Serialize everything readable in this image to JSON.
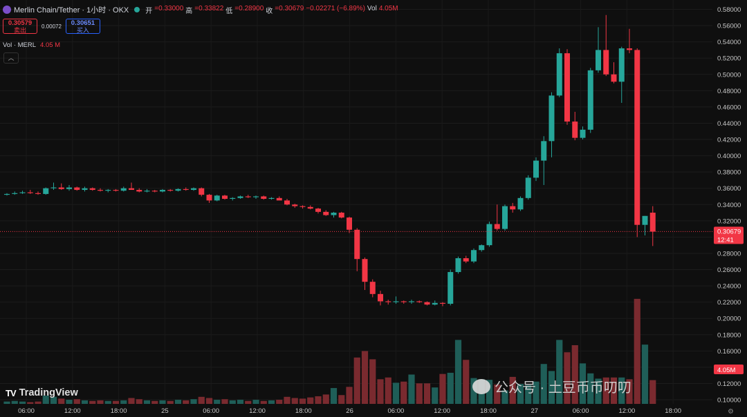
{
  "header": {
    "symbol": "Merlin Chain/Tether · 1小时 · OKX",
    "ohlc": [
      {
        "label": "开",
        "value": "=0.33000"
      },
      {
        "label": "高",
        "value": "=0.33822"
      },
      {
        "label": "低",
        "value": "=0.28900"
      },
      {
        "label": "收",
        "value": "=0.30679"
      }
    ],
    "change": "−0.02271 (−6.89%)",
    "vol_label": "Vol",
    "vol_value": "4.05M"
  },
  "trade": {
    "sell_price": "0.30579",
    "sell_label": "卖出",
    "spread": "0.00072",
    "buy_price": "0.30651",
    "buy_label": "买入"
  },
  "volume_legend": {
    "label": "Vol · MERL",
    "value": "4.05 M"
  },
  "collapse_icon": "chevron-up-icon",
  "price_axis": {
    "ticks": [
      "0.58000",
      "0.56000",
      "0.54000",
      "0.52000",
      "0.50000",
      "0.48000",
      "0.46000",
      "0.44000",
      "0.42000",
      "0.40000",
      "0.38000",
      "0.36000",
      "0.34000",
      "0.32000",
      "0.30000",
      "0.28000",
      "0.26000",
      "0.24000",
      "0.22000",
      "0.20000",
      "0.18000",
      "0.16000",
      "0.14000",
      "0.12000",
      "0.10000"
    ],
    "current_price": "0.30679",
    "countdown": "12:41",
    "volume_badge": "4.05M"
  },
  "time_axis": {
    "labels": [
      "06:00",
      "12:00",
      "18:00",
      "25",
      "06:00",
      "12:00",
      "18:00",
      "26",
      "06:00",
      "12:00",
      "18:00",
      "27",
      "06:00",
      "12:00",
      "18:00"
    ]
  },
  "branding": {
    "logo": "TV",
    "name": "TradingView"
  },
  "watermark": "公众号 · 土豆币币叨叨",
  "colors": {
    "up": "#26a69a",
    "down": "#f23645",
    "up_volume": "#1f5e58",
    "down_volume": "#7a2a2f",
    "background": "#0f0f0f"
  },
  "chart_data": {
    "type": "candlestick",
    "price_range": [
      0.09,
      0.585
    ],
    "current_price": 0.30679,
    "candles": [
      {
        "o": 0.352,
        "h": 0.354,
        "l": 0.351,
        "c": 0.353
      },
      {
        "o": 0.353,
        "h": 0.356,
        "l": 0.352,
        "c": 0.354
      },
      {
        "o": 0.354,
        "h": 0.357,
        "l": 0.353,
        "c": 0.355
      },
      {
        "o": 0.355,
        "h": 0.358,
        "l": 0.353,
        "c": 0.354
      },
      {
        "o": 0.354,
        "h": 0.356,
        "l": 0.352,
        "c": 0.353
      },
      {
        "o": 0.353,
        "h": 0.361,
        "l": 0.352,
        "c": 0.36
      },
      {
        "o": 0.36,
        "h": 0.367,
        "l": 0.358,
        "c": 0.361
      },
      {
        "o": 0.361,
        "h": 0.366,
        "l": 0.358,
        "c": 0.359
      },
      {
        "o": 0.359,
        "h": 0.364,
        "l": 0.357,
        "c": 0.361
      },
      {
        "o": 0.361,
        "h": 0.362,
        "l": 0.357,
        "c": 0.358
      },
      {
        "o": 0.358,
        "h": 0.362,
        "l": 0.356,
        "c": 0.36
      },
      {
        "o": 0.36,
        "h": 0.361,
        "l": 0.357,
        "c": 0.358
      },
      {
        "o": 0.358,
        "h": 0.36,
        "l": 0.356,
        "c": 0.357
      },
      {
        "o": 0.357,
        "h": 0.359,
        "l": 0.355,
        "c": 0.358
      },
      {
        "o": 0.358,
        "h": 0.359,
        "l": 0.356,
        "c": 0.357
      },
      {
        "o": 0.357,
        "h": 0.362,
        "l": 0.356,
        "c": 0.36
      },
      {
        "o": 0.36,
        "h": 0.367,
        "l": 0.358,
        "c": 0.358
      },
      {
        "o": 0.358,
        "h": 0.36,
        "l": 0.355,
        "c": 0.356
      },
      {
        "o": 0.356,
        "h": 0.359,
        "l": 0.355,
        "c": 0.357
      },
      {
        "o": 0.357,
        "h": 0.358,
        "l": 0.355,
        "c": 0.356
      },
      {
        "o": 0.356,
        "h": 0.359,
        "l": 0.355,
        "c": 0.358
      },
      {
        "o": 0.358,
        "h": 0.359,
        "l": 0.356,
        "c": 0.357
      },
      {
        "o": 0.357,
        "h": 0.36,
        "l": 0.356,
        "c": 0.359
      },
      {
        "o": 0.359,
        "h": 0.361,
        "l": 0.357,
        "c": 0.358
      },
      {
        "o": 0.358,
        "h": 0.361,
        "l": 0.357,
        "c": 0.36
      },
      {
        "o": 0.36,
        "h": 0.361,
        "l": 0.35,
        "c": 0.352
      },
      {
        "o": 0.352,
        "h": 0.353,
        "l": 0.342,
        "c": 0.345
      },
      {
        "o": 0.345,
        "h": 0.352,
        "l": 0.344,
        "c": 0.351
      },
      {
        "o": 0.351,
        "h": 0.352,
        "l": 0.346,
        "c": 0.347
      },
      {
        "o": 0.347,
        "h": 0.349,
        "l": 0.345,
        "c": 0.348
      },
      {
        "o": 0.348,
        "h": 0.351,
        "l": 0.347,
        "c": 0.35
      },
      {
        "o": 0.35,
        "h": 0.352,
        "l": 0.348,
        "c": 0.349
      },
      {
        "o": 0.349,
        "h": 0.351,
        "l": 0.347,
        "c": 0.35
      },
      {
        "o": 0.35,
        "h": 0.351,
        "l": 0.346,
        "c": 0.347
      },
      {
        "o": 0.347,
        "h": 0.349,
        "l": 0.346,
        "c": 0.348
      },
      {
        "o": 0.348,
        "h": 0.35,
        "l": 0.346,
        "c": 0.345
      },
      {
        "o": 0.345,
        "h": 0.347,
        "l": 0.339,
        "c": 0.34
      },
      {
        "o": 0.34,
        "h": 0.341,
        "l": 0.336,
        "c": 0.338
      },
      {
        "o": 0.338,
        "h": 0.339,
        "l": 0.335,
        "c": 0.337
      },
      {
        "o": 0.337,
        "h": 0.339,
        "l": 0.334,
        "c": 0.335
      },
      {
        "o": 0.335,
        "h": 0.336,
        "l": 0.329,
        "c": 0.331
      },
      {
        "o": 0.331,
        "h": 0.333,
        "l": 0.326,
        "c": 0.327
      },
      {
        "o": 0.327,
        "h": 0.331,
        "l": 0.324,
        "c": 0.33
      },
      {
        "o": 0.33,
        "h": 0.331,
        "l": 0.323,
        "c": 0.324
      },
      {
        "o": 0.324,
        "h": 0.325,
        "l": 0.305,
        "c": 0.309
      },
      {
        "o": 0.309,
        "h": 0.311,
        "l": 0.258,
        "c": 0.273
      },
      {
        "o": 0.273,
        "h": 0.275,
        "l": 0.235,
        "c": 0.245
      },
      {
        "o": 0.245,
        "h": 0.248,
        "l": 0.226,
        "c": 0.23
      },
      {
        "o": 0.23,
        "h": 0.234,
        "l": 0.216,
        "c": 0.221
      },
      {
        "o": 0.221,
        "h": 0.223,
        "l": 0.217,
        "c": 0.22
      },
      {
        "o": 0.22,
        "h": 0.227,
        "l": 0.218,
        "c": 0.221
      },
      {
        "o": 0.221,
        "h": 0.222,
        "l": 0.218,
        "c": 0.22
      },
      {
        "o": 0.22,
        "h": 0.223,
        "l": 0.218,
        "c": 0.221
      },
      {
        "o": 0.221,
        "h": 0.222,
        "l": 0.219,
        "c": 0.22
      },
      {
        "o": 0.22,
        "h": 0.221,
        "l": 0.216,
        "c": 0.217
      },
      {
        "o": 0.217,
        "h": 0.222,
        "l": 0.216,
        "c": 0.219
      },
      {
        "o": 0.219,
        "h": 0.22,
        "l": 0.215,
        "c": 0.218
      },
      {
        "o": 0.218,
        "h": 0.26,
        "l": 0.216,
        "c": 0.257
      },
      {
        "o": 0.257,
        "h": 0.276,
        "l": 0.255,
        "c": 0.274
      },
      {
        "o": 0.274,
        "h": 0.277,
        "l": 0.268,
        "c": 0.27
      },
      {
        "o": 0.27,
        "h": 0.286,
        "l": 0.268,
        "c": 0.284
      },
      {
        "o": 0.284,
        "h": 0.291,
        "l": 0.282,
        "c": 0.29
      },
      {
        "o": 0.29,
        "h": 0.319,
        "l": 0.288,
        "c": 0.316
      },
      {
        "o": 0.316,
        "h": 0.34,
        "l": 0.308,
        "c": 0.31
      },
      {
        "o": 0.31,
        "h": 0.34,
        "l": 0.308,
        "c": 0.338
      },
      {
        "o": 0.338,
        "h": 0.342,
        "l": 0.33,
        "c": 0.334
      },
      {
        "o": 0.334,
        "h": 0.35,
        "l": 0.332,
        "c": 0.348
      },
      {
        "o": 0.348,
        "h": 0.376,
        "l": 0.346,
        "c": 0.373
      },
      {
        "o": 0.373,
        "h": 0.398,
        "l": 0.369,
        "c": 0.394
      },
      {
        "o": 0.394,
        "h": 0.424,
        "l": 0.364,
        "c": 0.418
      },
      {
        "o": 0.418,
        "h": 0.478,
        "l": 0.398,
        "c": 0.474
      },
      {
        "o": 0.474,
        "h": 0.532,
        "l": 0.472,
        "c": 0.526
      },
      {
        "o": 0.526,
        "h": 0.531,
        "l": 0.438,
        "c": 0.442
      },
      {
        "o": 0.442,
        "h": 0.454,
        "l": 0.419,
        "c": 0.422
      },
      {
        "o": 0.422,
        "h": 0.436,
        "l": 0.42,
        "c": 0.432
      },
      {
        "o": 0.432,
        "h": 0.508,
        "l": 0.428,
        "c": 0.505
      },
      {
        "o": 0.505,
        "h": 0.558,
        "l": 0.502,
        "c": 0.53
      },
      {
        "o": 0.53,
        "h": 0.573,
        "l": 0.498,
        "c": 0.5
      },
      {
        "o": 0.5,
        "h": 0.515,
        "l": 0.489,
        "c": 0.491
      },
      {
        "o": 0.491,
        "h": 0.534,
        "l": 0.465,
        "c": 0.532
      },
      {
        "o": 0.532,
        "h": 0.556,
        "l": 0.526,
        "c": 0.53
      },
      {
        "o": 0.53,
        "h": 0.532,
        "l": 0.3,
        "c": 0.315
      },
      {
        "o": 0.315,
        "h": 0.326,
        "l": 0.302,
        "c": 0.326
      },
      {
        "o": 0.33,
        "h": 0.338,
        "l": 0.289,
        "c": 0.30679
      }
    ],
    "volumes": [
      0.4,
      0.5,
      0.4,
      0.3,
      0.4,
      1.4,
      1.2,
      0.9,
      0.7,
      0.8,
      0.6,
      0.5,
      0.6,
      0.5,
      0.5,
      0.6,
      1.0,
      0.8,
      0.6,
      0.5,
      0.6,
      0.5,
      0.7,
      0.6,
      0.8,
      1.2,
      1.0,
      0.7,
      0.8,
      0.6,
      0.7,
      0.5,
      0.7,
      0.5,
      0.6,
      0.7,
      1.2,
      1.0,
      0.9,
      1.1,
      1.3,
      1.6,
      2.7,
      1.5,
      2.9,
      7.9,
      9.0,
      7.6,
      4.2,
      4.5,
      3.6,
      3.8,
      5.0,
      3.5,
      3.5,
      2.8,
      5.1,
      5.3,
      10.9,
      7.5,
      4.4,
      4.2,
      4.1,
      3.3,
      2.3,
      4.6,
      3.4,
      3.2,
      3.8,
      6.8,
      5.6,
      10.9,
      8.8,
      10.0,
      6.9,
      5.2,
      4.3,
      4.5,
      4.5,
      4.5,
      4.2,
      17.9,
      10.1,
      4.05
    ]
  }
}
